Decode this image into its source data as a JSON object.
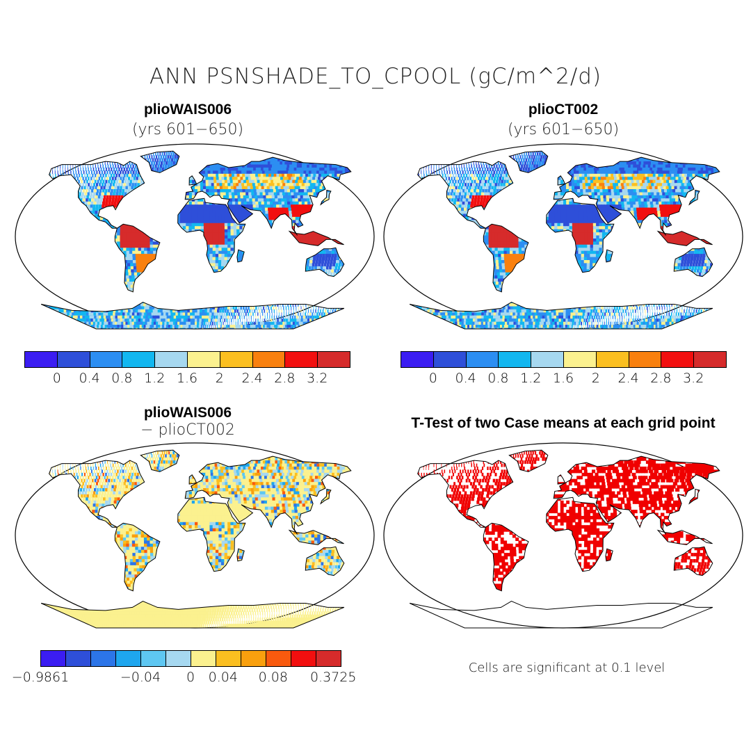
{
  "title": "ANN PSNSHADE_TO_CPOOL (gC/m^2/d)",
  "panels": {
    "top_left": {
      "title": "plioWAIS006",
      "subtitle": "(yrs 601−650)"
    },
    "top_right": {
      "title": "plioCT002",
      "subtitle": "(yrs 601−650)"
    },
    "bottom_left": {
      "title": "plioWAIS006",
      "subtitle": "− plioCT002"
    },
    "bottom_right": {
      "title": "T-Test of two Case means at each grid point"
    }
  },
  "colorbars": {
    "abs": {
      "colors": [
        "#3b1df2",
        "#2e4fd9",
        "#2c8ef2",
        "#12b7f0",
        "#a6d8f0",
        "#fbf18f",
        "#fbbf20",
        "#f9800e",
        "#f20f0f",
        "#d62b2b"
      ],
      "ticks": [
        "0",
        "0.4",
        "0.8",
        "1.2",
        "1.6",
        "2",
        "2.4",
        "2.8",
        "3.2"
      ]
    },
    "diff": {
      "colors": [
        "#3b1df2",
        "#2e4fd9",
        "#2c75e8",
        "#1ea6ee",
        "#5ec7f2",
        "#a6d8f0",
        "#fbf18f",
        "#fbbf20",
        "#f9a00e",
        "#f95a0e",
        "#f20f0f",
        "#d62b2b"
      ],
      "ticks": [
        "−0.9861",
        "−0.04",
        "0",
        "0.04",
        "0.08",
        "0.3725"
      ]
    }
  },
  "note": "Cells are significant at 0.1 level",
  "colors": {
    "significant": "#f00000",
    "ocean": "#ffffff",
    "land_outline": "#000000"
  }
}
